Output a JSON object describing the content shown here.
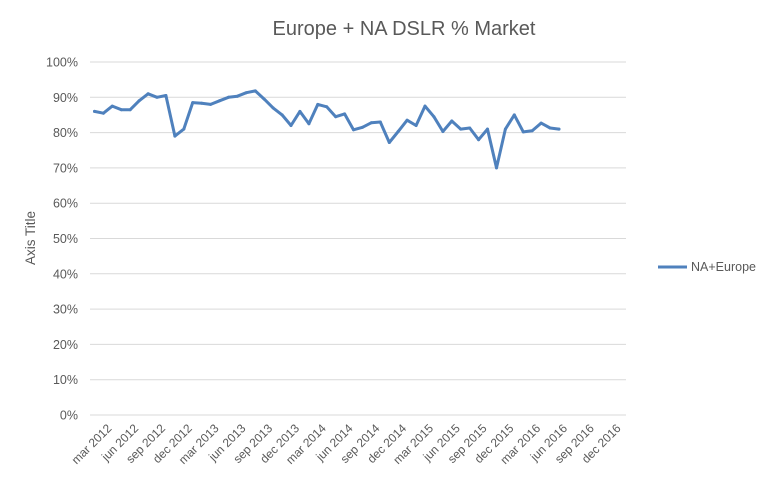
{
  "chart_data": {
    "type": "line",
    "title": "Europe + NA DSLR % Market",
    "xlabel": "",
    "ylabel": "Axis Title",
    "ylim": [
      0,
      100
    ],
    "y_ticks": [
      "0%",
      "10%",
      "20%",
      "30%",
      "40%",
      "50%",
      "60%",
      "70%",
      "80%",
      "90%",
      "100%"
    ],
    "x_tick_labels": [
      "mar 2012",
      "jun 2012",
      "sep 2012",
      "dec 2012",
      "mar 2013",
      "jun 2013",
      "sep 2013",
      "dec 2013",
      "mar 2014",
      "jun 2014",
      "sep 2014",
      "dec 2014",
      "mar 2015",
      "jun 2015",
      "sep 2015",
      "dec 2015",
      "mar 2016",
      "jun 2016",
      "sep 2016",
      "dec 2016"
    ],
    "x_start": "jan 2012",
    "x_end": "dec 2016",
    "grid": true,
    "legend_position": "right",
    "colors": {
      "series": "#4f81bd",
      "grid": "#d9d9d9",
      "text": "#595959"
    },
    "series": [
      {
        "name": "NA+Europe",
        "x": [
          "jan 2012",
          "feb 2012",
          "mar 2012",
          "apr 2012",
          "may 2012",
          "jun 2012",
          "jul 2012",
          "aug 2012",
          "sep 2012",
          "oct 2012",
          "nov 2012",
          "dec 2012",
          "jan 2013",
          "feb 2013",
          "mar 2013",
          "apr 2013",
          "may 2013",
          "jun 2013",
          "jul 2013",
          "aug 2013",
          "sep 2013",
          "oct 2013",
          "nov 2013",
          "dec 2013",
          "jan 2014",
          "feb 2014",
          "mar 2014",
          "apr 2014",
          "may 2014",
          "jun 2014",
          "jul 2014",
          "aug 2014",
          "sep 2014",
          "oct 2014",
          "nov 2014",
          "dec 2014",
          "jan 2015",
          "feb 2015",
          "mar 2015",
          "apr 2015",
          "may 2015",
          "jun 2015",
          "jul 2015",
          "aug 2015",
          "sep 2015",
          "oct 2015",
          "nov 2015",
          "dec 2015",
          "jan 2016",
          "feb 2016",
          "mar 2016",
          "apr 2016",
          "may 2016"
        ],
        "values": [
          86,
          85.5,
          87.5,
          86.5,
          86.5,
          89,
          91,
          90,
          90.5,
          79,
          81,
          88.5,
          88.3,
          88,
          89,
          90,
          90.3,
          91.3,
          91.8,
          89.5,
          87,
          85,
          82,
          86,
          82.5,
          88,
          87.3,
          84.5,
          85.3,
          80.8,
          81.5,
          82.8,
          83,
          77.2,
          80.3,
          83.5,
          82,
          87.5,
          84.5,
          80.3,
          83.3,
          81,
          81.3,
          78,
          81,
          70,
          81,
          85,
          80.2,
          80.5,
          82.7,
          81.3,
          81
        ]
      }
    ]
  }
}
